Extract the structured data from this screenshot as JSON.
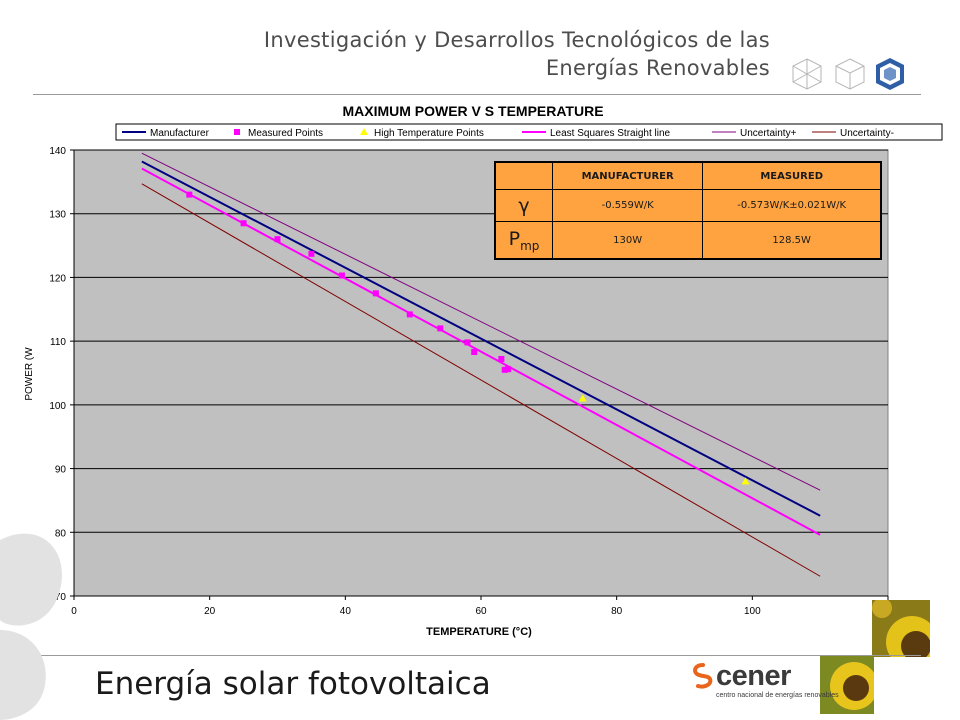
{
  "header": {
    "line1": "Investigación y Desarrollos Tecnológicos de las",
    "line2": "Energías Renovables"
  },
  "footer": {
    "title": "Energía solar fotovoltaica",
    "logo_word": "cener",
    "logo_sub": "centro nacional de energías renovables"
  },
  "table": {
    "col_manufacturer": "MANUFACTURER",
    "col_measured": "MEASURED",
    "row1_symbol": "γ",
    "row1_manufacturer": "-0.559W/K",
    "row1_measured": "-0.573W/K±0.021W/K",
    "row2_symbol": "P",
    "row2_sub": "mp",
    "row2_manufacturer": "130W",
    "row2_measured": "128.5W"
  },
  "colors": {
    "plot_bg": "#c0c0c0",
    "manufacturer": "#000080",
    "measured": "#ff00ff",
    "high_temp": "#ffff00",
    "least_squares": "#ff00ff",
    "uncertainty_plus": "#800080",
    "uncertainty_minus": "#800000",
    "table_bg": "#ffa340"
  },
  "chart_data": {
    "type": "scatter",
    "title": "MAXIMUM POWER V S TEMPERATURE",
    "xlabel": "TEMPERATURE (°C)",
    "ylabel": "POWER (W",
    "xlim": [
      0,
      120
    ],
    "ylim": [
      70,
      140
    ],
    "xticks": [
      0,
      20,
      40,
      60,
      80,
      100,
      120
    ],
    "yticks": [
      70,
      80,
      90,
      100,
      110,
      120,
      130,
      140
    ],
    "grid": "horizontal",
    "legend_position": "top",
    "lines": [
      {
        "name": "Manufacturer",
        "color": "#000080",
        "x": [
          10,
          110
        ],
        "y": [
          138.2,
          82.6
        ]
      },
      {
        "name": "Least Squares Straight line",
        "color": "#ff00ff",
        "x": [
          10,
          110
        ],
        "y": [
          137.1,
          79.6
        ]
      },
      {
        "name": "Uncertainty+",
        "color": "#800080",
        "x": [
          10,
          110
        ],
        "y": [
          139.5,
          86.6
        ]
      },
      {
        "name": "Uncertainty-",
        "color": "#800000",
        "x": [
          10,
          110
        ],
        "y": [
          134.7,
          73.1
        ]
      }
    ],
    "series": [
      {
        "name": "Measured Points",
        "color": "#ff00ff",
        "marker": "square",
        "x": [
          17,
          25,
          30,
          35,
          39.5,
          44.5,
          49.5,
          54,
          58,
          59,
          63,
          63.5,
          64
        ],
        "y": [
          133,
          128.5,
          126,
          123.7,
          120.3,
          117.5,
          114.2,
          112,
          109.8,
          108.3,
          107.2,
          105.5,
          105.6
        ]
      },
      {
        "name": "High Temperature Points",
        "color": "#ffff00",
        "marker": "triangle",
        "x": [
          75,
          99
        ],
        "y": [
          101,
          88
        ]
      }
    ]
  }
}
